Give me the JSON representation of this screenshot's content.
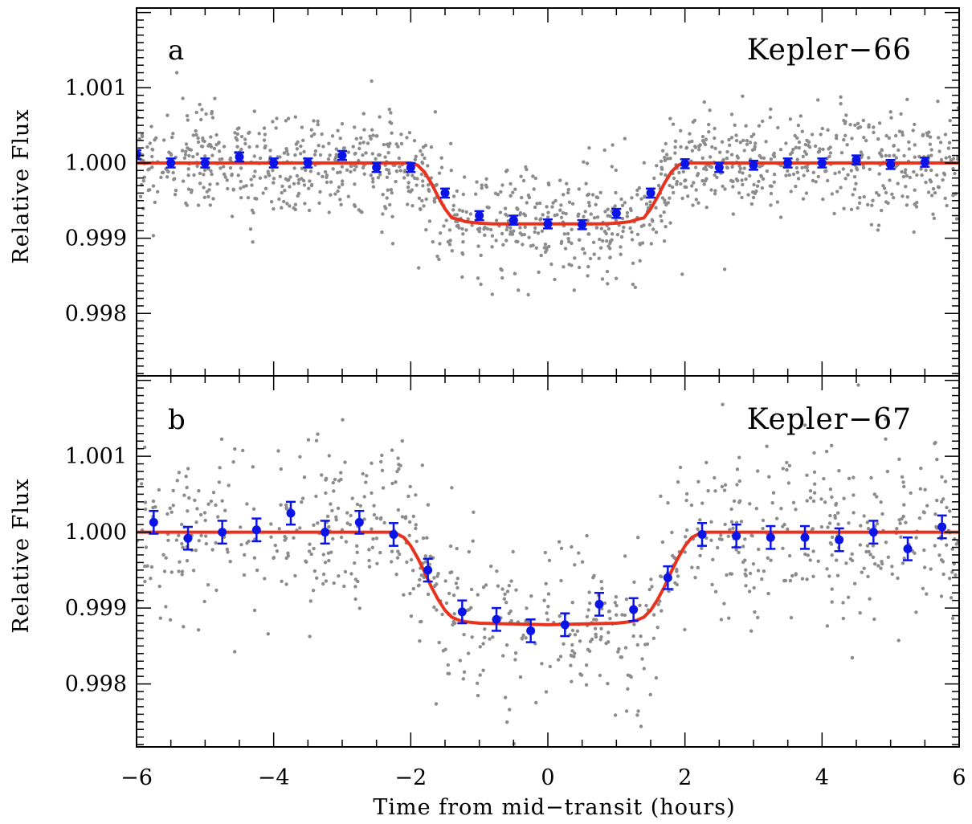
{
  "figure": {
    "xlabel": "Time from mid−transit (hours)",
    "ylabel": "Relative Flux",
    "xlim": [
      -6,
      6
    ],
    "x_ticks": [
      -6,
      -4,
      -2,
      0,
      2,
      4,
      6
    ],
    "x_tick_labels": [
      "−6",
      "−4",
      "−2",
      "0",
      "2",
      "4",
      "6"
    ],
    "y_ticks": [
      0.998,
      0.999,
      1.0,
      1.001
    ],
    "y_tick_labels": [
      "0.998",
      "0.999",
      "1.000",
      "1.001"
    ],
    "colors": {
      "raw": "#8c8c8c",
      "model": "#e8321e",
      "binned": "#0a14e6",
      "axes": "#000000"
    }
  },
  "chart_data": [
    {
      "type": "scatter",
      "panel_letter": "a",
      "panel_name": "Kepler−66",
      "xlabel": "Time from mid−transit (hours)",
      "ylabel": "Relative Flux",
      "xlim": [
        -6,
        6
      ],
      "ylim": [
        0.99717,
        1.00206
      ],
      "grid": false,
      "raw_points": {
        "count": 1300,
        "baseline": 1.0,
        "scatter_sigma": 0.00035
      },
      "model": {
        "depth": 0.00081,
        "x": [
          -6,
          -2.0,
          -1.9,
          -1.8,
          -1.7,
          -1.6,
          -1.5,
          -1.4,
          -1.3,
          -1.2,
          -1.0,
          -0.8,
          -0.5,
          0,
          0.5,
          0.8,
          1.0,
          1.2,
          1.3,
          1.4,
          1.5,
          1.6,
          1.7,
          1.8,
          1.9,
          2.0,
          6
        ],
        "y": [
          1.0,
          1.0,
          0.99997,
          0.99988,
          0.99973,
          0.99955,
          0.99939,
          0.99927,
          0.99925,
          0.99922,
          0.9992,
          0.99919,
          0.99919,
          0.99919,
          0.99919,
          0.99919,
          0.9992,
          0.99922,
          0.99925,
          0.99927,
          0.99939,
          0.99955,
          0.99973,
          0.99988,
          0.99997,
          1.0,
          1.0
        ]
      },
      "binned": {
        "x": [
          -6.0,
          -5.5,
          -5.0,
          -4.5,
          -4.0,
          -3.5,
          -3.0,
          -2.5,
          -2.0,
          -1.5,
          -1.0,
          -0.5,
          0.0,
          0.5,
          1.0,
          1.5,
          2.0,
          2.5,
          3.0,
          3.5,
          4.0,
          4.5,
          5.0,
          5.5
        ],
        "y": [
          1.00011,
          1.0,
          1.0,
          1.00008,
          1.0,
          1.0,
          1.0001,
          0.99994,
          0.99994,
          0.9996,
          0.9993,
          0.99924,
          0.99919,
          0.99918,
          0.99933,
          0.9996,
          0.99999,
          0.99994,
          0.99997,
          1.0,
          1.0,
          1.00004,
          0.99998,
          1.00001
        ],
        "err": [
          6e-05,
          6e-05,
          6e-05,
          6e-05,
          6e-05,
          6e-05,
          6e-05,
          6e-05,
          6e-05,
          6e-05,
          6e-05,
          6e-05,
          6e-05,
          6e-05,
          6e-05,
          6e-05,
          6e-05,
          6e-05,
          6e-05,
          6e-05,
          6e-05,
          6e-05,
          6e-05,
          6e-05
        ]
      }
    },
    {
      "type": "scatter",
      "panel_letter": "b",
      "panel_name": "Kepler−67",
      "xlabel": "Time from mid−transit (hours)",
      "ylabel": "Relative Flux",
      "xlim": [
        -6,
        6
      ],
      "ylim": [
        0.99717,
        1.00206
      ],
      "grid": false,
      "raw_points": {
        "count": 850,
        "baseline": 1.0,
        "scatter_sigma": 0.00055
      },
      "model": {
        "depth": 0.00122,
        "x": [
          -6,
          -2.25,
          -2.1,
          -2.0,
          -1.9,
          -1.8,
          -1.7,
          -1.6,
          -1.5,
          -1.4,
          -1.3,
          -1.2,
          -1.0,
          -0.5,
          0,
          0.5,
          1.0,
          1.2,
          1.3,
          1.4,
          1.5,
          1.6,
          1.7,
          1.8,
          1.9,
          2.0,
          2.1,
          2.25,
          6
        ],
        "y": [
          1.0,
          1.0,
          0.99993,
          0.99982,
          0.99966,
          0.99948,
          0.99928,
          0.99911,
          0.99897,
          0.99888,
          0.99884,
          0.99882,
          0.9988,
          0.99879,
          0.99878,
          0.99879,
          0.9988,
          0.99882,
          0.99884,
          0.99888,
          0.99897,
          0.99911,
          0.99928,
          0.99948,
          0.99966,
          0.99982,
          0.99993,
          1.0,
          1.0
        ]
      },
      "binned": {
        "x": [
          -5.75,
          -5.25,
          -4.75,
          -4.25,
          -3.75,
          -3.25,
          -2.75,
          -2.25,
          -1.75,
          -1.25,
          -0.75,
          -0.25,
          0.25,
          0.75,
          1.25,
          1.75,
          2.25,
          2.75,
          3.25,
          3.75,
          4.25,
          4.75,
          5.25,
          5.75
        ],
        "y": [
          1.00013,
          0.99992,
          1.0,
          1.00003,
          1.00025,
          1.0,
          1.00013,
          0.99997,
          0.9995,
          0.99895,
          0.99885,
          0.9987,
          0.99878,
          0.99905,
          0.99898,
          0.9994,
          0.99997,
          0.99995,
          0.99993,
          0.99993,
          0.9999,
          1.0,
          0.99978,
          1.00007
        ],
        "err": [
          0.00015,
          0.00015,
          0.00015,
          0.00015,
          0.00015,
          0.00015,
          0.00015,
          0.00015,
          0.00015,
          0.00015,
          0.00015,
          0.00015,
          0.00015,
          0.00015,
          0.00015,
          0.00015,
          0.00015,
          0.00015,
          0.00015,
          0.00015,
          0.00015,
          0.00015,
          0.00015,
          0.00015
        ]
      }
    }
  ]
}
